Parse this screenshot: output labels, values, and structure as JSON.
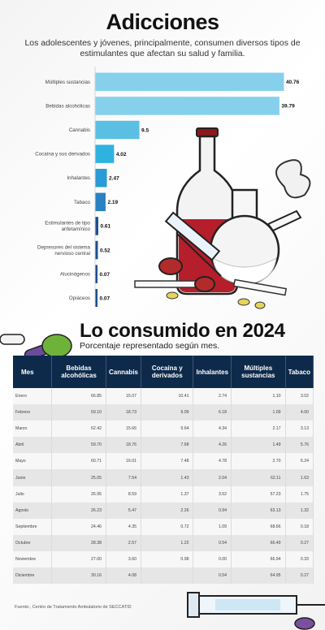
{
  "title": "Adicciones",
  "subtitle": "Los adolescentes y jóvenes, principalmente, consumen diversos tipos de estimulantes que afectan su salud y familia.",
  "chart_data": {
    "type": "bar",
    "orientation": "horizontal",
    "categories": [
      [
        "Múltiples sustancias"
      ],
      [
        "Bebidas alcohólicas"
      ],
      [
        "Cannabis"
      ],
      [
        "Cocaína y sus derivados"
      ],
      [
        "Inhalantes"
      ],
      [
        "Tabaco"
      ],
      [
        "Estimulantes de tipo",
        "anfetamínico"
      ],
      [
        "Depresores del sistema",
        "nervioso central"
      ],
      [
        "Alucinógenos"
      ],
      [
        "Opiáceos"
      ]
    ],
    "values": [
      40.76,
      39.79,
      9.5,
      4.02,
      2.47,
      2.19,
      0.61,
      0.52,
      0.07,
      0.07
    ],
    "value_labels": [
      "40.76",
      "39.79",
      "9.5",
      "4.02",
      "2.47",
      "2.19",
      "0.61",
      "0.52",
      "0.07",
      "0.07"
    ],
    "colors": [
      "#86d0ec",
      "#86d0ec",
      "#5bbfe3",
      "#2eb3e0",
      "#2a9bd4",
      "#2a82c0",
      "#1d4f8c",
      "#1d4f8c",
      "#1d4f8c",
      "#1d4f8c"
    ],
    "xlim": [
      0,
      42
    ]
  },
  "table": {
    "title": "Lo consumido en 2024",
    "subtitle": "Porcentaje representado según mes.",
    "headers": [
      "Mes",
      "Bebidas alcohólicas",
      "Cannabis",
      "Cocaína y derivados",
      "Inhalantes",
      "Múltiples sustancias",
      "Tabaco"
    ],
    "rows": [
      [
        "Enero",
        "66.85",
        "15.07",
        "10.41",
        "2.74",
        "1.10",
        "3.02"
      ],
      [
        "Febrero",
        "59.10",
        "18.73",
        "9.09",
        "6.18",
        "1.09",
        "4.00"
      ],
      [
        "Marzo",
        "62.42",
        "15.66",
        "9.64",
        "4.34",
        "2.17",
        "3.13"
      ],
      [
        "Abril",
        "59.70",
        "18.76",
        "7.68",
        "4.26",
        "1.49",
        "5.76"
      ],
      [
        "Mayo",
        "60.71",
        "16.01",
        "7.48",
        "4.78",
        "2.70",
        "6.24"
      ],
      [
        "Junio",
        "25.05",
        "7.54",
        "1.43",
        "2.04",
        "62.11",
        "1.63"
      ],
      [
        "Julio",
        "26.95",
        "8.59",
        "1.37",
        "3.52",
        "57.23",
        "1.75"
      ],
      [
        "Agosto",
        "26.23",
        "5.47",
        "2.26",
        "0.94",
        "63.13",
        "1.32"
      ],
      [
        "Septiembre",
        "24.46",
        "4.35",
        "0.72",
        "1.09",
        "68.66",
        "0.18"
      ],
      [
        "Octubre",
        "28.38",
        "2.57",
        "1.22",
        "0.54",
        "66.49",
        "0.27"
      ],
      [
        "Noviembre",
        "27.00",
        "3.60",
        "0.98",
        "0.00",
        "66.94",
        "0.33"
      ],
      [
        "Diciembre",
        "30.16",
        "4.08",
        "",
        "0.54",
        "64.95",
        "0.27"
      ]
    ]
  },
  "source": "Fuente:, Centro de Tratamiento Ambulatorio de SECCATID"
}
